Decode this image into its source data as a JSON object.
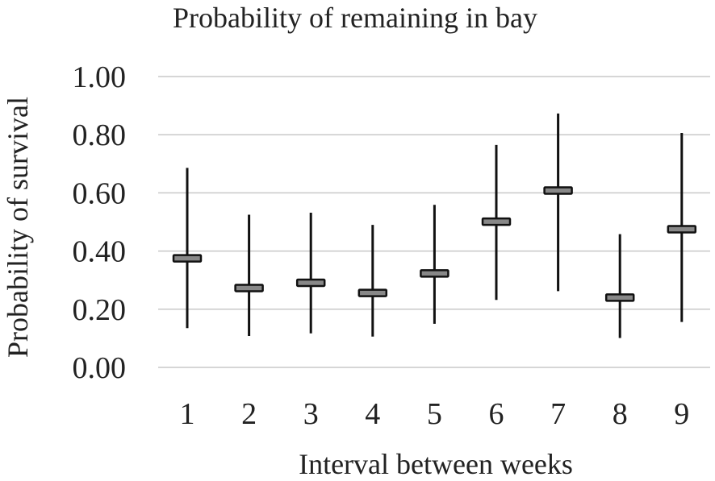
{
  "chart_data": {
    "type": "scatter",
    "title": "Probability  of remaining  in  bay",
    "xlabel": "Interval  between  weeks",
    "ylabel": "Probability  of  survival",
    "categories": [
      "1",
      "2",
      "3",
      "4",
      "5",
      "6",
      "7",
      "8",
      "9"
    ],
    "yticks": [
      "0.00",
      "0.20",
      "0.40",
      "0.60",
      "0.80",
      "1.00"
    ],
    "ylim": [
      0,
      1
    ],
    "grid": true,
    "series": [
      {
        "values": [
          0.375,
          0.273,
          0.291,
          0.256,
          0.323,
          0.501,
          0.608,
          0.24,
          0.475
        ],
        "lower": [
          0.135,
          0.108,
          0.117,
          0.106,
          0.15,
          0.232,
          0.262,
          0.101,
          0.156
        ],
        "upper": [
          0.686,
          0.525,
          0.532,
          0.49,
          0.559,
          0.765,
          0.873,
          0.458,
          0.806
        ]
      }
    ],
    "colors": {
      "grid": "#c8c8c8",
      "marker_fill": "#888888",
      "line": "#111111"
    }
  }
}
